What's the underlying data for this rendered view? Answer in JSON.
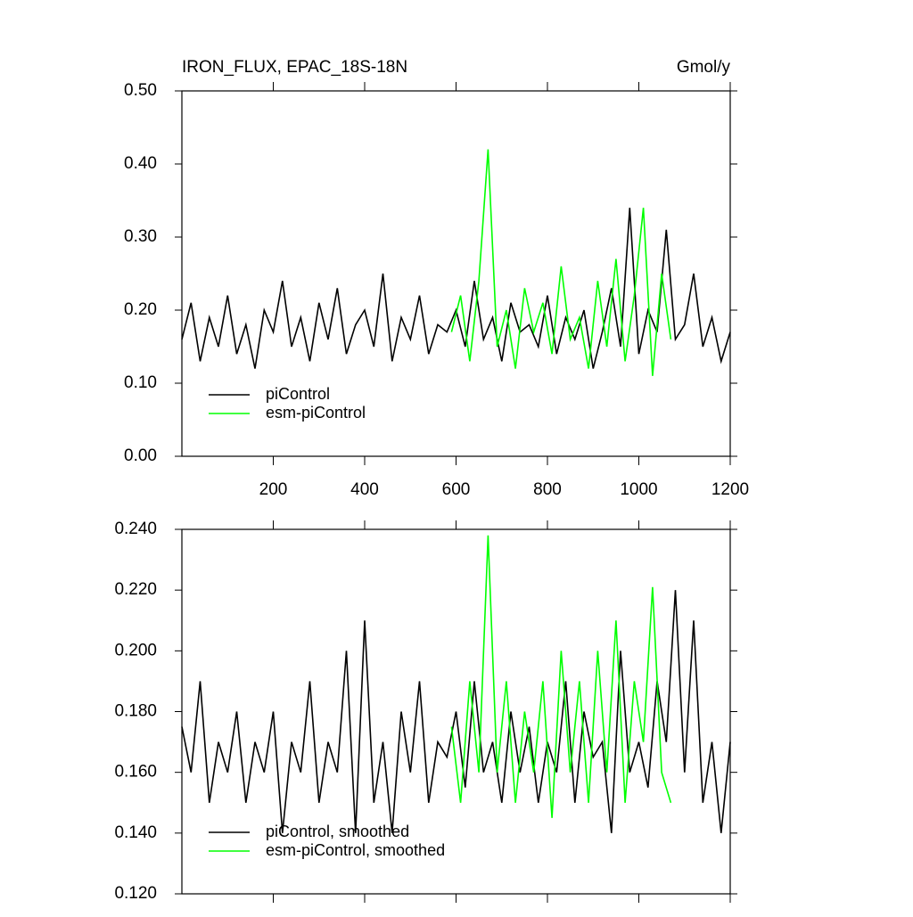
{
  "chart_data": [
    {
      "type": "line",
      "title": "IRON_FLUX, EPAC_18S-18N",
      "right_title": "Gmol/y",
      "xlim": [
        0,
        1200
      ],
      "xticks": [
        200,
        400,
        600,
        800,
        1000,
        1200
      ],
      "show_xtick_labels": true,
      "ylim": [
        0,
        0.5
      ],
      "yticks": [
        {
          "value": 0,
          "label": "0.00"
        },
        {
          "value": 0.1,
          "label": "0.10"
        },
        {
          "value": 0.2,
          "label": "0.20"
        },
        {
          "value": 0.3,
          "label": "0.30"
        },
        {
          "value": 0.4,
          "label": "0.40"
        },
        {
          "value": 0.5,
          "label": "0.50"
        }
      ],
      "legend": "lower left",
      "series": [
        {
          "name": "piControl",
          "color": "#000000",
          "x": [
            0,
            20,
            40,
            60,
            80,
            100,
            120,
            140,
            160,
            180,
            200,
            220,
            240,
            260,
            280,
            300,
            320,
            340,
            360,
            380,
            400,
            420,
            440,
            460,
            480,
            500,
            520,
            540,
            560,
            580,
            600,
            620,
            640,
            660,
            680,
            700,
            720,
            740,
            760,
            780,
            800,
            820,
            840,
            860,
            880,
            900,
            920,
            940,
            960,
            980,
            1000,
            1020,
            1040,
            1060,
            1080,
            1100,
            1120,
            1140,
            1160,
            1180,
            1200
          ],
          "values": [
            0.16,
            0.21,
            0.13,
            0.19,
            0.15,
            0.22,
            0.14,
            0.18,
            0.12,
            0.2,
            0.17,
            0.24,
            0.15,
            0.19,
            0.13,
            0.21,
            0.16,
            0.23,
            0.14,
            0.18,
            0.2,
            0.15,
            0.25,
            0.13,
            0.19,
            0.16,
            0.22,
            0.14,
            0.18,
            0.17,
            0.2,
            0.15,
            0.24,
            0.16,
            0.19,
            0.13,
            0.21,
            0.17,
            0.18,
            0.15,
            0.22,
            0.14,
            0.19,
            0.16,
            0.2,
            0.12,
            0.17,
            0.23,
            0.15,
            0.34,
            0.14,
            0.2,
            0.17,
            0.31,
            0.16,
            0.18,
            0.25,
            0.15,
            0.19,
            0.13,
            0.17
          ]
        },
        {
          "name": "esm-piControl",
          "color": "#00ff00",
          "x": [
            590,
            610,
            630,
            650,
            670,
            690,
            710,
            730,
            750,
            770,
            790,
            810,
            830,
            850,
            870,
            890,
            910,
            930,
            950,
            970,
            990,
            1010,
            1030,
            1050,
            1070
          ],
          "values": [
            0.17,
            0.22,
            0.13,
            0.24,
            0.42,
            0.15,
            0.2,
            0.12,
            0.23,
            0.17,
            0.21,
            0.14,
            0.26,
            0.16,
            0.19,
            0.12,
            0.24,
            0.15,
            0.27,
            0.13,
            0.22,
            0.34,
            0.11,
            0.25,
            0.16
          ]
        }
      ]
    },
    {
      "type": "line",
      "xlim": [
        0,
        1200
      ],
      "xticks": [
        200,
        400,
        600,
        800,
        1000,
        1200
      ],
      "show_xtick_labels": false,
      "ylim": [
        0.12,
        0.24
      ],
      "yticks": [
        {
          "value": 0.12,
          "label": "0.120"
        },
        {
          "value": 0.14,
          "label": "0.140"
        },
        {
          "value": 0.16,
          "label": "0.160"
        },
        {
          "value": 0.18,
          "label": "0.180"
        },
        {
          "value": 0.2,
          "label": "0.200"
        },
        {
          "value": 0.22,
          "label": "0.220"
        },
        {
          "value": 0.24,
          "label": "0.240"
        }
      ],
      "legend": "lower left",
      "series": [
        {
          "name": "piControl, smoothed",
          "color": "#000000",
          "x": [
            0,
            20,
            40,
            60,
            80,
            100,
            120,
            140,
            160,
            180,
            200,
            220,
            240,
            260,
            280,
            300,
            320,
            340,
            360,
            380,
            400,
            420,
            440,
            460,
            480,
            500,
            520,
            540,
            560,
            580,
            600,
            620,
            640,
            660,
            680,
            700,
            720,
            740,
            760,
            780,
            800,
            820,
            840,
            860,
            880,
            900,
            920,
            940,
            960,
            980,
            1000,
            1020,
            1040,
            1060,
            1080,
            1100,
            1120,
            1140,
            1160,
            1180,
            1200
          ],
          "values": [
            0.175,
            0.16,
            0.19,
            0.15,
            0.17,
            0.16,
            0.18,
            0.15,
            0.17,
            0.16,
            0.18,
            0.14,
            0.17,
            0.16,
            0.19,
            0.15,
            0.17,
            0.16,
            0.2,
            0.14,
            0.21,
            0.15,
            0.17,
            0.14,
            0.18,
            0.16,
            0.19,
            0.15,
            0.17,
            0.165,
            0.18,
            0.155,
            0.19,
            0.16,
            0.17,
            0.15,
            0.18,
            0.16,
            0.175,
            0.15,
            0.17,
            0.16,
            0.19,
            0.15,
            0.18,
            0.165,
            0.17,
            0.14,
            0.2,
            0.16,
            0.17,
            0.155,
            0.19,
            0.17,
            0.22,
            0.16,
            0.21,
            0.15,
            0.17,
            0.14,
            0.17
          ]
        },
        {
          "name": "esm-piControl, smoothed",
          "color": "#00ff00",
          "x": [
            590,
            610,
            630,
            650,
            670,
            690,
            710,
            730,
            750,
            770,
            790,
            810,
            830,
            850,
            870,
            890,
            910,
            930,
            950,
            970,
            990,
            1010,
            1030,
            1050,
            1070
          ],
          "values": [
            0.175,
            0.15,
            0.19,
            0.16,
            0.238,
            0.16,
            0.19,
            0.15,
            0.18,
            0.16,
            0.19,
            0.145,
            0.2,
            0.16,
            0.19,
            0.15,
            0.2,
            0.16,
            0.21,
            0.15,
            0.19,
            0.17,
            0.221,
            0.16,
            0.15
          ]
        }
      ]
    }
  ]
}
